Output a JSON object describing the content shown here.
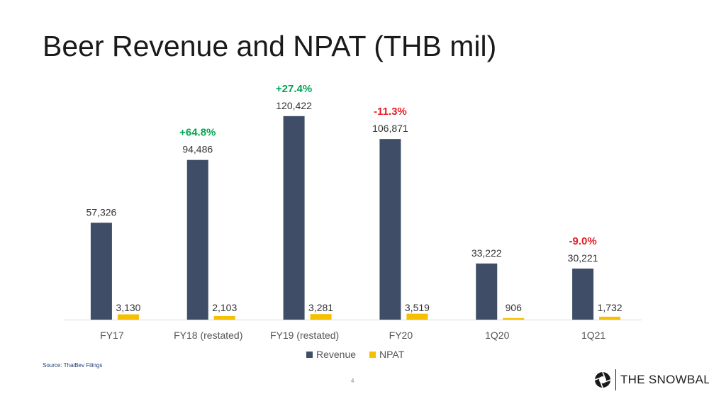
{
  "title": "Beer Revenue and NPAT (THB mil)",
  "source": "Source: ThaiBev Filings",
  "page_number": "4",
  "logo": {
    "text": "THE SNOWBALL",
    "icon": "aperture-icon"
  },
  "colors": {
    "revenue": "#3f4e66",
    "npat": "#f5c000",
    "positive": "#00a651",
    "negative": "#e31e24"
  },
  "chart_data": {
    "type": "bar",
    "categories": [
      "FY17",
      "FY18 (restated)",
      "FY19 (restated)",
      "FY20",
      "1Q20",
      "1Q21"
    ],
    "series": [
      {
        "name": "Revenue",
        "values": [
          57326,
          94486,
          120422,
          106871,
          33222,
          30221
        ],
        "labels": [
          "57,326",
          "94,486",
          "120,422",
          "106,871",
          "33,222",
          "30,221"
        ]
      },
      {
        "name": "NPAT",
        "values": [
          3130,
          2103,
          3281,
          3519,
          906,
          1732
        ],
        "labels": [
          "3,130",
          "2,103",
          "3,281",
          "3,519",
          "906",
          "1,732"
        ]
      }
    ],
    "annotations": [
      {
        "category": "FY18 (restated)",
        "text": "+64.8%",
        "sign": "positive"
      },
      {
        "category": "FY19 (restated)",
        "text": "+27.4%",
        "sign": "positive"
      },
      {
        "category": "FY20",
        "text": "-11.3%",
        "sign": "negative"
      },
      {
        "category": "1Q21",
        "text": "-9.0%",
        "sign": "negative"
      }
    ],
    "ylim": [
      0,
      130000
    ],
    "legend_position": "bottom",
    "grid": false
  }
}
